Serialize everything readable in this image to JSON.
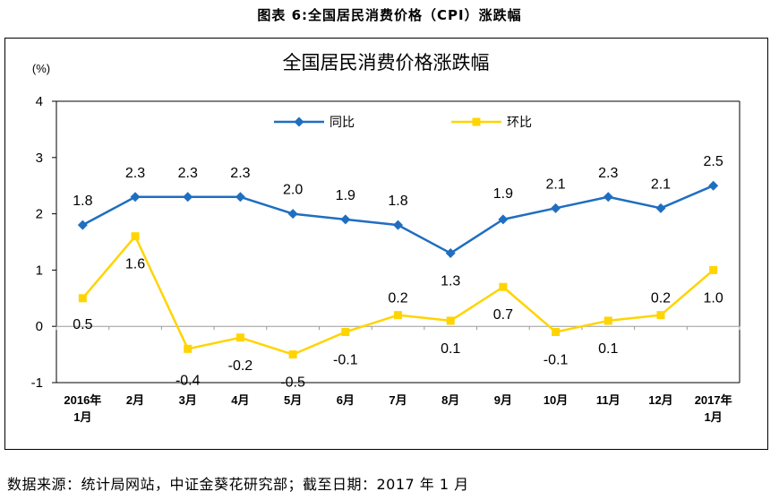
{
  "caption": "图表  6:全国居民消费价格（CPI）涨跌幅",
  "source": "数据来源：统计局网站，中证金葵花研究部；截至日期：2017 年 1 月",
  "chart_data": {
    "type": "line",
    "title": "全国居民消费价格涨跌幅",
    "ylabel": "(%)",
    "xlabel": "",
    "ylim": [
      -1,
      4
    ],
    "yticks": [
      "4",
      "3",
      "2",
      "1",
      "0",
      "-1"
    ],
    "ytick_values": [
      4,
      3,
      2,
      1,
      0,
      -1
    ],
    "grid": false,
    "legend_position": "top",
    "categories": [
      {
        "line1": "2016年",
        "line2": "1月"
      },
      {
        "line1": "2月",
        "line2": ""
      },
      {
        "line1": "3月",
        "line2": ""
      },
      {
        "line1": "4月",
        "line2": ""
      },
      {
        "line1": "5月",
        "line2": ""
      },
      {
        "line1": "6月",
        "line2": ""
      },
      {
        "line1": "7月",
        "line2": ""
      },
      {
        "line1": "8月",
        "line2": ""
      },
      {
        "line1": "9月",
        "line2": ""
      },
      {
        "line1": "10月",
        "line2": ""
      },
      {
        "line1": "11月",
        "line2": ""
      },
      {
        "line1": "12月",
        "line2": ""
      },
      {
        "line1": "2017年",
        "line2": "1月"
      }
    ],
    "series": [
      {
        "name": "同比",
        "color": "#1F6EC0",
        "marker": "diamond",
        "values": [
          1.8,
          2.3,
          2.3,
          2.3,
          2.0,
          1.9,
          1.8,
          1.3,
          1.9,
          2.1,
          2.3,
          2.1,
          2.5
        ],
        "labels": [
          "1.8",
          "2.3",
          "2.3",
          "2.3",
          "2.0",
          "1.9",
          "1.8",
          "1.3",
          "1.9",
          "2.1",
          "2.3",
          "2.1",
          "2.5"
        ]
      },
      {
        "name": "环比",
        "color": "#FFD400",
        "marker": "square",
        "values": [
          0.5,
          1.6,
          -0.4,
          -0.2,
          -0.5,
          -0.1,
          0.2,
          0.1,
          0.7,
          -0.1,
          0.1,
          0.2,
          1.0
        ],
        "labels": [
          "0.5",
          "1.6",
          "-0.4",
          "-0.2",
          "-0.5",
          "-0.1",
          "0.2",
          "0.1",
          "0.7",
          "-0.1",
          "0.1",
          "0.2",
          "1.0"
        ]
      }
    ]
  }
}
